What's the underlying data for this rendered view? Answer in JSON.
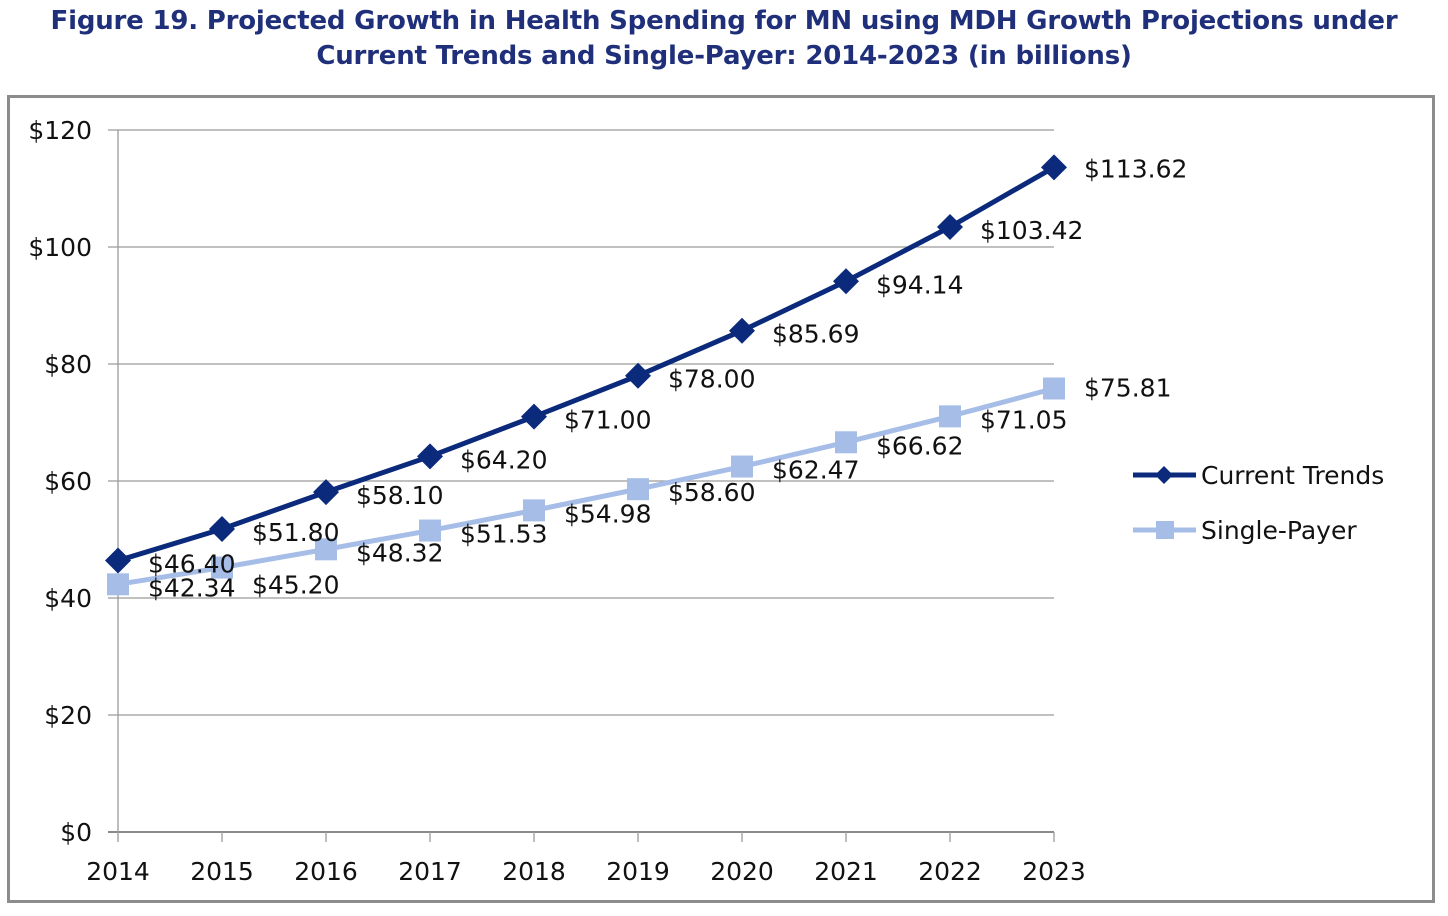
{
  "chart_data": {
    "type": "line",
    "title_line1": "Figure 19. Projected Growth in Health Spending for MN using MDH Growth Projections under",
    "title_line2": "Current Trends and Single-Payer: 2014-2023 (in billions)",
    "xlabel": "",
    "ylabel": "",
    "x": [
      "2014",
      "2015",
      "2016",
      "2017",
      "2018",
      "2019",
      "2020",
      "2021",
      "2022",
      "2023"
    ],
    "ylim": [
      0,
      120
    ],
    "yticks": [
      0,
      20,
      40,
      60,
      80,
      100,
      120
    ],
    "ytick_labels": [
      "$0",
      "$20",
      "$40",
      "$60",
      "$80",
      "$100",
      "$120"
    ],
    "grid": "horizontal",
    "legend_position": "right",
    "series": [
      {
        "name": "Current Trends",
        "color": "#0b2a7c",
        "marker": "diamond",
        "values": [
          46.4,
          51.8,
          58.1,
          64.2,
          71.0,
          78.0,
          85.69,
          94.14,
          103.42,
          113.62
        ],
        "labels": [
          "$46.40",
          "$51.80",
          "$58.10",
          "$64.20",
          "$71.00",
          "$78.00",
          "$85.69",
          "$94.14",
          "$103.42",
          "$113.62"
        ]
      },
      {
        "name": "Single-Payer",
        "color": "#a6bde8",
        "marker": "square",
        "values": [
          42.34,
          45.2,
          48.32,
          51.53,
          54.98,
          58.6,
          62.47,
          66.62,
          71.05,
          75.81
        ],
        "labels": [
          "$42.34",
          "$45.20",
          "$48.32",
          "$51.53",
          "$54.98",
          "$58.60",
          "$62.47",
          "$66.62",
          "$71.05",
          "$75.81"
        ]
      }
    ]
  }
}
